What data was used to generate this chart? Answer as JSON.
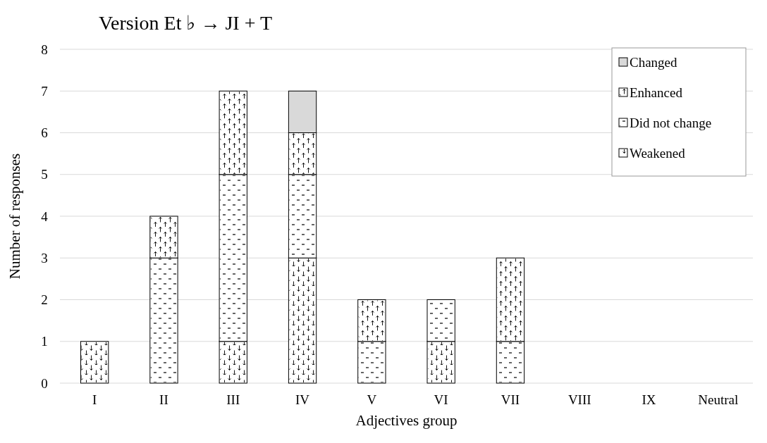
{
  "chart_data": {
    "type": "bar",
    "title": "Version Et ♭ → JI + T",
    "xlabel": "Adjectives group",
    "ylabel": "Number of responses",
    "categories": [
      "I",
      "II",
      "III",
      "IV",
      "V",
      "VI",
      "VII",
      "VIII",
      "IX",
      "Neutral"
    ],
    "stacked": true,
    "ylim": [
      0,
      8
    ],
    "yticks": [
      0,
      1,
      2,
      3,
      4,
      5,
      6,
      7,
      8
    ],
    "grid": "y",
    "legend": "top right",
    "series": [
      {
        "name": "Weakened",
        "color": "#ffffff",
        "values": [
          1,
          0,
          1,
          3,
          0,
          1,
          0,
          0,
          0,
          0
        ]
      },
      {
        "name": "Did not change",
        "color": "#ffffff",
        "values": [
          0,
          3,
          4,
          2,
          1,
          1,
          1,
          0,
          0,
          0
        ]
      },
      {
        "name": "Enhanced",
        "color": "#ffffff",
        "values": [
          0,
          1,
          2,
          1,
          1,
          0,
          2,
          0,
          0,
          0
        ]
      },
      {
        "name": "Changed",
        "color": "#d9d9d9",
        "values": [
          0,
          0,
          0,
          1,
          0,
          0,
          0,
          0,
          0,
          0
        ]
      }
    ]
  }
}
